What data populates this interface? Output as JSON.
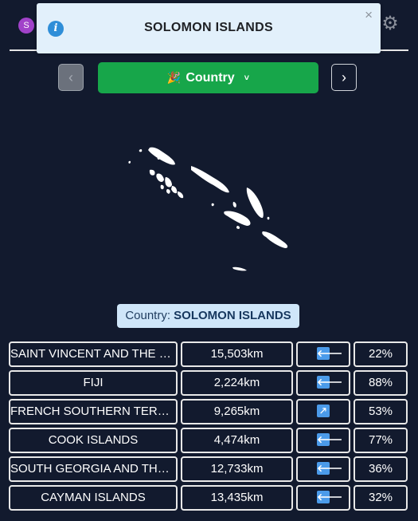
{
  "header": {
    "avatar_letter": "S",
    "gear_icon": "gear-icon"
  },
  "toast": {
    "title": "SOLOMON ISLANDS",
    "close": "×",
    "info": "i"
  },
  "nav": {
    "prev": "‹",
    "next": "›"
  },
  "mode": {
    "label": "Country",
    "flag": "🎉"
  },
  "answer": {
    "prefix": "Country: ",
    "name": "SOLOMON ISLANDS"
  },
  "guesses": [
    {
      "name": "SAINT VINCENT AND THE GRENADINES",
      "distance": "15,503km",
      "direction": "🡐",
      "percent": "22%"
    },
    {
      "name": "FIJI",
      "distance": "2,224km",
      "direction": "🡐",
      "percent": "88%"
    },
    {
      "name": "FRENCH SOUTHERN TERRITORIES",
      "distance": "9,265km",
      "direction": "🡕",
      "percent": "53%"
    },
    {
      "name": "COOK ISLANDS",
      "distance": "4,474km",
      "direction": "🡐",
      "percent": "77%"
    },
    {
      "name": "SOUTH GEORGIA AND THE SOUTH SANDWICH ISLANDS",
      "distance": "12,733km",
      "direction": "🡐",
      "percent": "36%"
    },
    {
      "name": "CAYMAN ISLANDS",
      "distance": "13,435km",
      "direction": "🡐",
      "percent": "32%"
    }
  ]
}
